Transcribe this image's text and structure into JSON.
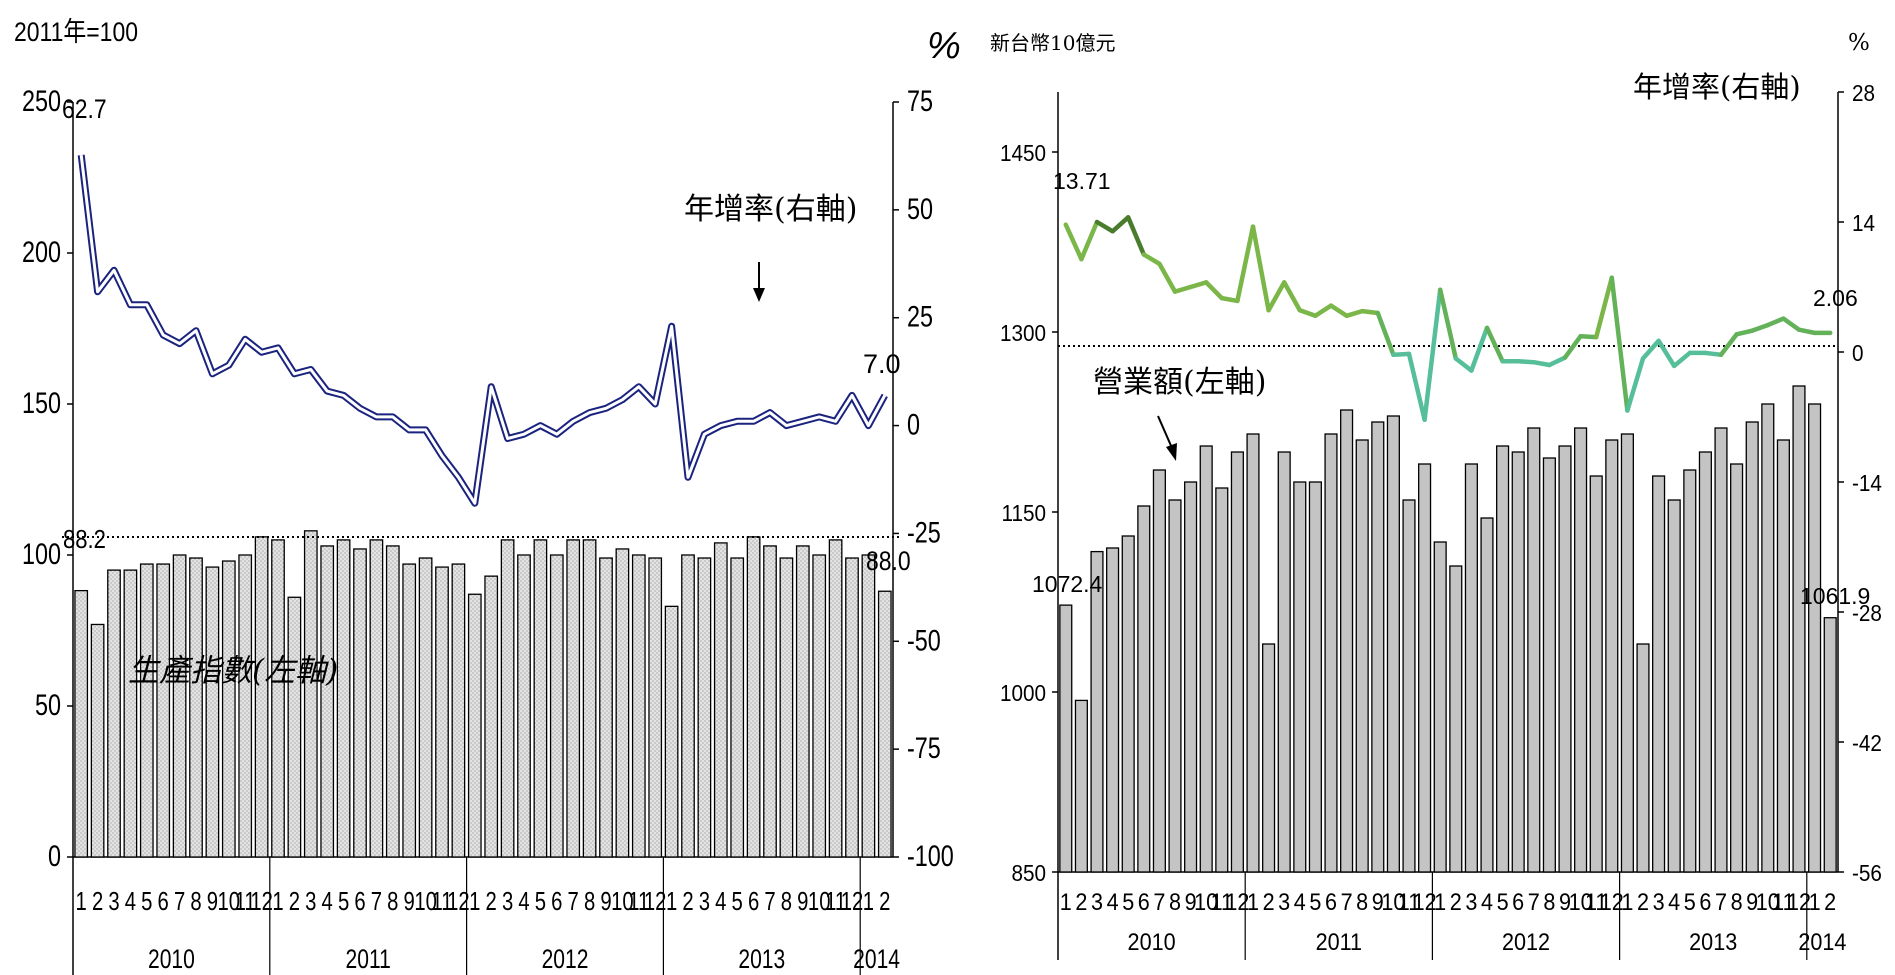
{
  "chart_data": [
    {
      "id": "production",
      "type": "bar",
      "unit_left": "2011年=100",
      "unit_right": "%",
      "left_axis": {
        "ylim": [
          0,
          250
        ],
        "ticks": [
          "0",
          "50",
          "100",
          "150",
          "200",
          "250"
        ]
      },
      "right_axis": {
        "ylim": [
          -100,
          75
        ],
        "ticks": [
          "-100",
          "-75",
          "-50",
          "-25",
          "0",
          "25",
          "50",
          "75"
        ]
      },
      "month_labels": [
        "1",
        "2",
        "3",
        "4",
        "5",
        "6",
        "7",
        "8",
        "9",
        "10",
        "11",
        "12",
        "1",
        "2",
        "3",
        "4",
        "5",
        "6",
        "7",
        "8",
        "9",
        "10",
        "11",
        "12",
        "1",
        "2",
        "3",
        "4",
        "5",
        "6",
        "7",
        "8",
        "9",
        "10",
        "11",
        "12",
        "1",
        "2",
        "3",
        "4",
        "5",
        "6",
        "7",
        "8",
        "9",
        "10",
        "11",
        "12",
        "1",
        "2"
      ],
      "years": [
        "2010",
        "2011",
        "2012",
        "2013",
        "2014"
      ],
      "series": [
        {
          "name": "生產指數(左軸)",
          "axis": "left",
          "values": [
            88.2,
            77,
            95,
            95,
            97,
            97,
            100,
            99,
            96,
            98,
            100,
            106,
            105,
            86,
            108,
            103,
            105,
            102,
            105,
            103,
            97,
            99,
            96,
            97,
            87,
            93,
            105,
            100,
            105,
            100,
            105,
            105,
            99,
            102,
            100,
            99,
            83,
            100,
            99,
            104,
            99,
            106,
            103,
            99,
            103,
            100,
            105,
            99,
            100,
            88.0
          ]
        },
        {
          "name": "年增率(右軸)",
          "axis": "right",
          "values": [
            62.7,
            31,
            36,
            28,
            28,
            21,
            19,
            22,
            12,
            14,
            20,
            17,
            18,
            12,
            13,
            8,
            7,
            4,
            2,
            2,
            -1,
            -1,
            -7,
            -12,
            -18,
            9,
            -3,
            -2,
            0,
            -2,
            1,
            3,
            4,
            6,
            9,
            5,
            23,
            -12,
            -2,
            0,
            1,
            1,
            3,
            0,
            1,
            2,
            1,
            7,
            0,
            7.0
          ]
        }
      ],
      "data_labels": {
        "first_index": "62.7",
        "last_index": "7.0",
        "first_bar": "88.2",
        "last_bar": "88.0"
      },
      "annotations": {
        "right_series": "年增率(右軸)",
        "left_series": "生產指數(左軸)"
      }
    },
    {
      "id": "revenue",
      "type": "bar",
      "unit_left": "新台幣10億元",
      "unit_right": "%",
      "left_axis": {
        "ylim": [
          850,
          1500
        ],
        "ticks": [
          "850",
          "1000",
          "1150",
          "1300",
          "1450"
        ]
      },
      "right_axis": {
        "ylim": [
          -56,
          28
        ],
        "ticks": [
          "-56",
          "-42",
          "-28",
          "-14",
          "0",
          "14",
          "28"
        ]
      },
      "month_labels": [
        "1",
        "2",
        "3",
        "4",
        "5",
        "6",
        "7",
        "8",
        "9",
        "10",
        "11",
        "12",
        "1",
        "2",
        "3",
        "4",
        "5",
        "6",
        "7",
        "8",
        "9",
        "10",
        "11",
        "12",
        "1",
        "2",
        "3",
        "4",
        "5",
        "6",
        "7",
        "8",
        "9",
        "10",
        "11",
        "12",
        "1",
        "2",
        "3",
        "4",
        "5",
        "6",
        "7",
        "8",
        "9",
        "10",
        "11",
        "12",
        "1",
        "2"
      ],
      "years": [
        "2010",
        "2011",
        "2012",
        "2013",
        "2014"
      ],
      "series": [
        {
          "name": "營業額(左軸)",
          "axis": "left",
          "values": [
            1072.4,
            993,
            1117,
            1120,
            1130,
            1155,
            1185,
            1160,
            1175,
            1205,
            1170,
            1200,
            1215,
            1040,
            1200,
            1175,
            1175,
            1215,
            1235,
            1210,
            1225,
            1230,
            1160,
            1190,
            1125,
            1105,
            1190,
            1145,
            1205,
            1200,
            1220,
            1195,
            1205,
            1220,
            1180,
            1210,
            1215,
            1040,
            1180,
            1160,
            1185,
            1200,
            1220,
            1190,
            1225,
            1240,
            1210,
            1255,
            1240,
            1061.9
          ]
        },
        {
          "name": "年增率(右軸)",
          "axis": "right",
          "values": [
            13.71,
            10,
            14,
            13,
            14.5,
            10.5,
            9.5,
            6.5,
            7,
            7.5,
            5.8,
            5.5,
            13.5,
            4.5,
            7.5,
            4.5,
            3.9,
            5,
            3.9,
            4.4,
            4.2,
            -0.3,
            -0.2,
            -7.3,
            6.7,
            -0.7,
            -2,
            2.6,
            -1,
            -1,
            -1.1,
            -1.4,
            -0.6,
            1.7,
            1.6,
            8,
            -6.3,
            -0.7,
            1.2,
            -1.5,
            -0.1,
            -0.1,
            -0.3,
            1.9,
            2.3,
            2.9,
            3.6,
            2.4,
            2.06,
            2.06
          ]
        }
      ],
      "data_labels": {
        "first_bar": "1072.4",
        "last_bar": "1061.9",
        "first_rate": "13.71",
        "last_rate": "2.06"
      },
      "annotations": {
        "right_series": "年增率(右軸)",
        "left_series": "營業額(左軸)"
      }
    }
  ]
}
